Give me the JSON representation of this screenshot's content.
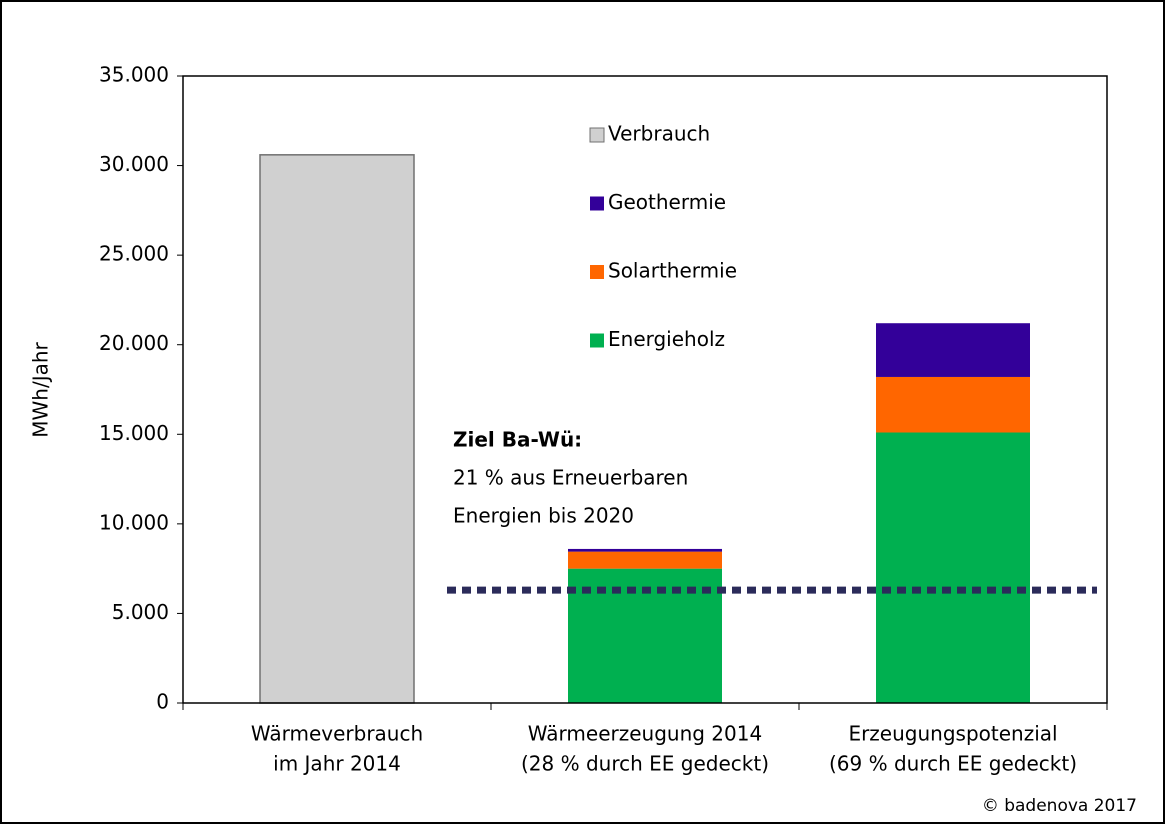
{
  "chart_data": {
    "type": "stacked_bar",
    "ylabel": "MWh/Jahr",
    "categories": [
      [
        "Wärmeverbrauch",
        "im Jahr 2014"
      ],
      [
        "Wärmeerzeugung 2014",
        "(28 % durch EE gedeckt)"
      ],
      [
        "Erzeugungspotenzial",
        "(69 % durch EE gedeckt)"
      ]
    ],
    "series": [
      {
        "name": "Verbrauch",
        "color": "#d0d0d0",
        "values": [
          30600,
          null,
          null
        ]
      },
      {
        "name": "Geothermie",
        "color": "#330099",
        "values": [
          null,
          150,
          3000
        ]
      },
      {
        "name": "Solarthermie",
        "color": "#ff6600",
        "values": [
          null,
          950,
          3100
        ]
      },
      {
        "name": "Energieholz",
        "color": "#00b050",
        "values": [
          null,
          7500,
          15100
        ]
      }
    ],
    "ylim": [
      0,
      35000
    ],
    "yticks": [
      0,
      {
        "value": 5000,
        "label": "5.000"
      },
      {
        "value": 10000,
        "label": "10.000"
      },
      {
        "value": 15000,
        "label": "15.000"
      },
      {
        "value": 20000,
        "label": "20.000"
      },
      {
        "value": 25000,
        "label": "25.000"
      },
      {
        "value": 30000,
        "label": "30.000"
      },
      {
        "value": 35000,
        "label": "35.000"
      }
    ],
    "target_line": 6300,
    "annotation": [
      "Ziel Ba-Wü:",
      "21 % aus Erneuerbaren",
      "Energien bis 2020"
    ],
    "copyright": "© badenova  2017"
  }
}
